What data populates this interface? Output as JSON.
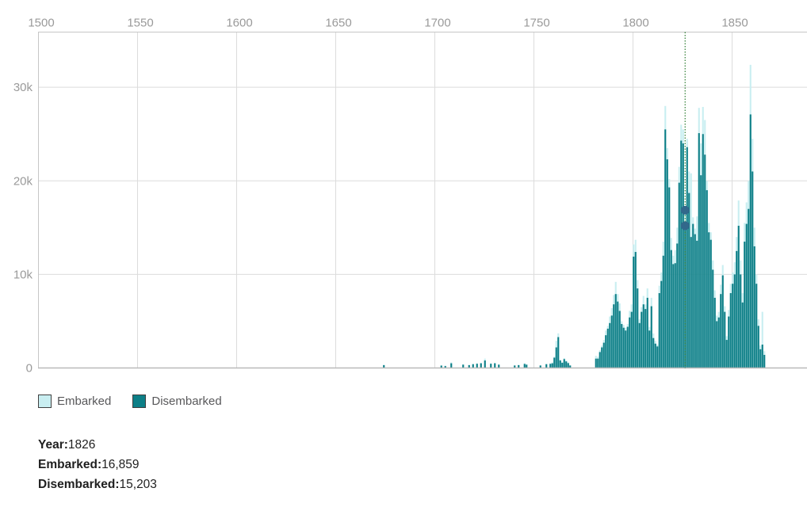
{
  "chart_data": {
    "type": "bar",
    "title": "",
    "x_axis": {
      "position": "top",
      "min": 1500,
      "max": 1883,
      "tick_labels": [
        "1500",
        "1550",
        "1600",
        "1650",
        "1700",
        "1750",
        "1800",
        "1850"
      ],
      "tick_values": [
        1500,
        1550,
        1600,
        1650,
        1700,
        1750,
        1800,
        1850
      ]
    },
    "y_axis": {
      "position": "left",
      "max": 35900,
      "tick_labels": [
        "0",
        "10k",
        "20k",
        "30k"
      ],
      "tick_values": [
        0,
        10000,
        20000,
        30000
      ],
      "grid": true
    },
    "legend": [
      {
        "label": "Embarked",
        "color": "#c9eef1"
      },
      {
        "label": "Disembarked",
        "color": "#0d7f87"
      }
    ],
    "colors": {
      "embarked": "#c9eef1",
      "disembarked": "#0d7f87",
      "grid": "#dcdcdc",
      "axis_border": "#c6c6c6",
      "bottom_axis": "#b9b9b9",
      "tick_text": "#9a9a9a",
      "marker_line": "#2e7d32",
      "marker_dot": "#32688b"
    },
    "selected_point": {
      "year": 1826,
      "embarked": 16859,
      "disembarked": 15203
    },
    "series_names": [
      "Embarked",
      "Disembarked"
    ],
    "points": [
      [
        1674,
        350,
        300
      ],
      [
        1703,
        300,
        250
      ],
      [
        1705,
        250,
        200
      ],
      [
        1708,
        600,
        500
      ],
      [
        1714,
        400,
        350
      ],
      [
        1717,
        350,
        300
      ],
      [
        1719,
        450,
        400
      ],
      [
        1721,
        500,
        450
      ],
      [
        1723,
        550,
        500
      ],
      [
        1725,
        1000,
        800
      ],
      [
        1728,
        500,
        450
      ],
      [
        1730,
        550,
        500
      ],
      [
        1732,
        400,
        350
      ],
      [
        1740,
        300,
        260
      ],
      [
        1742,
        350,
        300
      ],
      [
        1745,
        500,
        430
      ],
      [
        1746,
        400,
        350
      ],
      [
        1753,
        300,
        260
      ],
      [
        1756,
        450,
        400
      ],
      [
        1758,
        500,
        440
      ],
      [
        1759,
        600,
        500
      ],
      [
        1760,
        1200,
        1100
      ],
      [
        1761,
        2900,
        2200
      ],
      [
        1762,
        3700,
        3300
      ],
      [
        1763,
        900,
        800
      ],
      [
        1764,
        650,
        550
      ],
      [
        1765,
        1050,
        950
      ],
      [
        1766,
        800,
        700
      ],
      [
        1767,
        600,
        520
      ],
      [
        1768,
        300,
        260
      ],
      [
        1781,
        1300,
        1000
      ],
      [
        1782,
        1200,
        1000
      ],
      [
        1783,
        1900,
        1700
      ],
      [
        1784,
        2400,
        2200
      ],
      [
        1785,
        3000,
        2700
      ],
      [
        1786,
        4000,
        3500
      ],
      [
        1787,
        4500,
        4200
      ],
      [
        1788,
        5500,
        4800
      ],
      [
        1789,
        6400,
        5600
      ],
      [
        1790,
        7800,
        6800
      ],
      [
        1791,
        9200,
        7900
      ],
      [
        1792,
        7900,
        7100
      ],
      [
        1793,
        6900,
        6100
      ],
      [
        1794,
        5000,
        4700
      ],
      [
        1795,
        4600,
        4300
      ],
      [
        1796,
        4300,
        4000
      ],
      [
        1797,
        4700,
        4400
      ],
      [
        1798,
        6100,
        5400
      ],
      [
        1799,
        6800,
        6000
      ],
      [
        1800,
        13200,
        11900
      ],
      [
        1801,
        13700,
        12400
      ],
      [
        1802,
        9400,
        8500
      ],
      [
        1803,
        5200,
        4800
      ],
      [
        1804,
        6500,
        6000
      ],
      [
        1805,
        7700,
        6800
      ],
      [
        1806,
        6800,
        6300
      ],
      [
        1807,
        8500,
        7500
      ],
      [
        1808,
        4400,
        4000
      ],
      [
        1809,
        7500,
        6600
      ],
      [
        1810,
        3700,
        3200
      ],
      [
        1811,
        2900,
        2600
      ],
      [
        1812,
        2500,
        2300
      ],
      [
        1813,
        8800,
        8000
      ],
      [
        1814,
        10200,
        9300
      ],
      [
        1815,
        13500,
        12000
      ],
      [
        1816,
        28000,
        25500
      ],
      [
        1817,
        23500,
        22300
      ],
      [
        1818,
        20200,
        19300
      ],
      [
        1819,
        13900,
        12600
      ],
      [
        1820,
        12000,
        11100
      ],
      [
        1821,
        12600,
        11200
      ],
      [
        1822,
        15000,
        13300
      ],
      [
        1823,
        21500,
        19800
      ],
      [
        1824,
        26000,
        24300
      ],
      [
        1825,
        25500,
        24000
      ],
      [
        1826,
        16859,
        15203
      ],
      [
        1827,
        24500,
        23600
      ],
      [
        1828,
        21000,
        18700
      ],
      [
        1829,
        20800,
        14000
      ],
      [
        1830,
        16100,
        15400
      ],
      [
        1831,
        14900,
        14300
      ],
      [
        1832,
        16200,
        13600
      ],
      [
        1833,
        27800,
        25100
      ],
      [
        1834,
        24000,
        20600
      ],
      [
        1835,
        27900,
        25000
      ],
      [
        1836,
        26500,
        22800
      ],
      [
        1837,
        20000,
        19000
      ],
      [
        1838,
        15500,
        14500
      ],
      [
        1839,
        14500,
        13700
      ],
      [
        1840,
        11500,
        10500
      ],
      [
        1841,
        8300,
        7500
      ],
      [
        1842,
        5600,
        5000
      ],
      [
        1843,
        6000,
        5400
      ],
      [
        1844,
        8900,
        7900
      ],
      [
        1845,
        11000,
        9900
      ],
      [
        1846,
        6600,
        6000
      ],
      [
        1847,
        3400,
        3000
      ],
      [
        1848,
        6200,
        5500
      ],
      [
        1849,
        9000,
        8000
      ],
      [
        1850,
        10200,
        9000
      ],
      [
        1851,
        11300,
        10000
      ],
      [
        1852,
        14000,
        12500
      ],
      [
        1853,
        17900,
        15200
      ],
      [
        1854,
        11500,
        10000
      ],
      [
        1855,
        8000,
        7000
      ],
      [
        1856,
        15500,
        13500
      ],
      [
        1857,
        17700,
        15400
      ],
      [
        1858,
        20000,
        17000
      ],
      [
        1859,
        32400,
        27100
      ],
      [
        1860,
        24500,
        21000
      ],
      [
        1861,
        15000,
        13000
      ],
      [
        1862,
        10000,
        9000
      ],
      [
        1863,
        5200,
        4500
      ],
      [
        1864,
        2400,
        2000
      ],
      [
        1865,
        6000,
        2500
      ],
      [
        1866,
        1800,
        1400
      ]
    ]
  },
  "legend": {
    "embarked_label": "Embarked",
    "disembarked_label": "Disembarked"
  },
  "tooltip": {
    "year_label": "Year:",
    "year_value": "1826",
    "embarked_label": "Embarked:",
    "embarked_value": "16,859",
    "disembarked_label": "Disembarked:",
    "disembarked_value": "15,203"
  }
}
